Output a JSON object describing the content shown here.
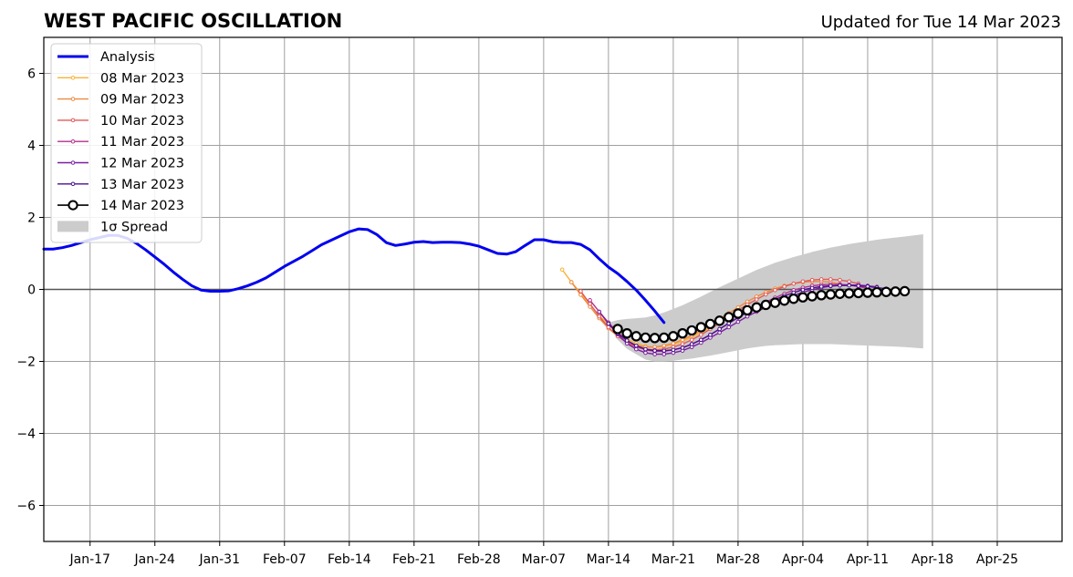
{
  "chart_data": {
    "type": "line",
    "title": "WEST PACIFIC OSCILLATION",
    "subtitle": "Updated for Tue 14 Mar 2023",
    "xlabel": "",
    "ylabel": "",
    "ylim": [
      -7,
      7
    ],
    "y_ticks": [
      -6,
      -4,
      -2,
      0,
      2,
      4,
      6
    ],
    "y_tick_labels": [
      "−6",
      "−4",
      "−2",
      "0",
      "2",
      "4",
      "6"
    ],
    "xlim": [
      "2023-01-12",
      "2023-05-02"
    ],
    "x_ticks": [
      "2023-01-17",
      "2023-01-24",
      "2023-01-31",
      "2023-02-07",
      "2023-02-14",
      "2023-02-21",
      "2023-02-28",
      "2023-03-07",
      "2023-03-14",
      "2023-03-21",
      "2023-03-28",
      "2023-04-04",
      "2023-04-11",
      "2023-04-18",
      "2023-04-25"
    ],
    "x_tick_labels": [
      "Jan-17",
      "Jan-24",
      "Jan-31",
      "Feb-07",
      "Feb-14",
      "Feb-21",
      "Feb-28",
      "Mar-07",
      "Mar-14",
      "Mar-21",
      "Mar-28",
      "Apr-04",
      "Apr-11",
      "Apr-18",
      "Apr-25"
    ],
    "grid": true,
    "legend_position": "top-left",
    "legend": [
      "Analysis",
      "08 Mar 2023",
      "09 Mar 2023",
      "10 Mar 2023",
      "11 Mar 2023",
      "12 Mar 2023",
      "13 Mar 2023",
      "14 Mar 2023",
      "1σ Spread"
    ],
    "analysis": {
      "name": "Analysis",
      "color": "#0000ee",
      "start": "2023-01-12",
      "values": [
        1.12,
        1.12,
        1.16,
        1.22,
        1.3,
        1.38,
        1.44,
        1.5,
        1.5,
        1.42,
        1.28,
        1.1,
        0.9,
        0.7,
        0.48,
        0.28,
        0.1,
        -0.02,
        -0.05,
        -0.05,
        -0.04,
        0.02,
        0.1,
        0.2,
        0.32,
        0.48,
        0.64,
        0.78,
        0.92,
        1.08,
        1.24,
        1.36,
        1.48,
        1.6,
        1.68,
        1.66,
        1.52,
        1.3,
        1.22,
        1.26,
        1.31,
        1.33,
        1.3,
        1.31,
        1.31,
        1.3,
        1.26,
        1.2,
        1.1,
        1.0,
        0.98,
        1.05,
        1.22,
        1.38,
        1.38,
        1.32,
        1.3,
        1.3,
        1.25,
        1.1,
        0.85,
        0.62,
        0.44,
        0.22,
        -0.02,
        -0.3,
        -0.6,
        -0.92
      ]
    },
    "forecasts": [
      {
        "name": "08 Mar 2023",
        "color": "#f9b233",
        "start": "2023-03-09",
        "values": [
          0.55,
          0.2,
          -0.1,
          -0.42,
          -0.72,
          -0.98,
          -1.2,
          -1.38,
          -1.5,
          -1.58,
          -1.6,
          -1.58,
          -1.52,
          -1.44,
          -1.32,
          -1.2,
          -1.06,
          -0.92,
          -0.78,
          -0.64
        ]
      },
      {
        "name": "09 Mar 2023",
        "color": "#ef8a3e",
        "start": "2023-03-10",
        "values": [
          0.2,
          -0.15,
          -0.48,
          -0.8,
          -1.08,
          -1.3,
          -1.46,
          -1.56,
          -1.6,
          -1.6,
          -1.56,
          -1.5,
          -1.4,
          -1.28,
          -1.14,
          -0.98,
          -0.82,
          -0.66,
          -0.5,
          -0.34,
          -0.2,
          -0.08,
          0.02,
          0.1,
          0.16,
          0.2,
          0.22,
          0.22,
          0.2,
          0.15
        ]
      },
      {
        "name": "10 Mar 2023",
        "color": "#e05a5a",
        "start": "2023-03-11",
        "values": [
          -0.05,
          -0.4,
          -0.75,
          -1.05,
          -1.3,
          -1.48,
          -1.6,
          -1.66,
          -1.68,
          -1.66,
          -1.6,
          -1.52,
          -1.4,
          -1.26,
          -1.1,
          -0.94,
          -0.76,
          -0.58,
          -0.42,
          -0.28,
          -0.14,
          -0.02,
          0.08,
          0.16,
          0.22,
          0.26,
          0.28,
          0.28,
          0.26,
          0.22,
          0.16
        ]
      },
      {
        "name": "11 Mar 2023",
        "color": "#b5318c",
        "start": "2023-03-12",
        "values": [
          -0.3,
          -0.62,
          -0.92,
          -1.2,
          -1.42,
          -1.58,
          -1.68,
          -1.72,
          -1.72,
          -1.68,
          -1.62,
          -1.52,
          -1.4,
          -1.26,
          -1.1,
          -0.94,
          -0.78,
          -0.62,
          -0.48,
          -0.35,
          -0.23,
          -0.12,
          -0.02,
          0.05,
          0.1,
          0.13,
          0.14,
          0.14,
          0.12,
          0.08,
          0.03
        ]
      },
      {
        "name": "12 Mar 2023",
        "color": "#7a1fa2",
        "start": "2023-03-13",
        "values": [
          -0.62,
          -0.95,
          -1.25,
          -1.5,
          -1.66,
          -1.76,
          -1.8,
          -1.8,
          -1.76,
          -1.7,
          -1.6,
          -1.48,
          -1.34,
          -1.2,
          -1.05,
          -0.9,
          -0.75,
          -0.62,
          -0.5,
          -0.38,
          -0.27,
          -0.17,
          -0.08,
          -0.01,
          0.05,
          0.09,
          0.11,
          0.12,
          0.12,
          0.1,
          0.07
        ]
      },
      {
        "name": "13 Mar 2023",
        "color": "#4a0f8f",
        "start": "2023-03-14",
        "values": [
          -0.95,
          -1.22,
          -1.42,
          -1.56,
          -1.66,
          -1.7,
          -1.7,
          -1.68,
          -1.62,
          -1.52,
          -1.4,
          -1.26,
          -1.1,
          -0.94,
          -0.78,
          -0.64,
          -0.51,
          -0.39,
          -0.28,
          -0.18,
          -0.09,
          -0.01,
          0.04,
          0.08,
          0.1,
          0.11,
          0.11,
          0.1,
          0.08,
          0.05,
          0.02
        ]
      },
      {
        "name": "14 Mar 2023",
        "color": "#000000",
        "start": "2023-03-15",
        "values": [
          -1.1,
          -1.22,
          -1.3,
          -1.34,
          -1.35,
          -1.34,
          -1.3,
          -1.22,
          -1.14,
          -1.05,
          -0.96,
          -0.87,
          -0.77,
          -0.67,
          -0.58,
          -0.5,
          -0.43,
          -0.37,
          -0.31,
          -0.26,
          -0.22,
          -0.19,
          -0.16,
          -0.14,
          -0.12,
          -0.11,
          -0.1,
          -0.09,
          -0.08,
          -0.07,
          -0.06,
          -0.05
        ]
      }
    ],
    "spread": {
      "name": "1σ Spread",
      "color": "#cccccc",
      "start": "2023-03-14",
      "upper": [
        -0.92,
        -0.85,
        -0.82,
        -0.8,
        -0.78,
        -0.72,
        -0.64,
        -0.54,
        -0.44,
        -0.32,
        -0.2,
        -0.07,
        0.06,
        0.18,
        0.3,
        0.42,
        0.54,
        0.64,
        0.74,
        0.82,
        0.9,
        0.97,
        1.04,
        1.1,
        1.16,
        1.21,
        1.26,
        1.3,
        1.34,
        1.38,
        1.41,
        1.44,
        1.47,
        1.5,
        1.53
      ],
      "lower": [
        -0.92,
        -1.4,
        -1.65,
        -1.8,
        -1.95,
        -2.0,
        -2.0,
        -1.98,
        -1.95,
        -1.92,
        -1.88,
        -1.84,
        -1.79,
        -1.74,
        -1.69,
        -1.64,
        -1.6,
        -1.57,
        -1.55,
        -1.54,
        -1.53,
        -1.52,
        -1.52,
        -1.52,
        -1.52,
        -1.53,
        -1.54,
        -1.55,
        -1.56,
        -1.57,
        -1.58,
        -1.59,
        -1.6,
        -1.62,
        -1.64
      ]
    }
  }
}
